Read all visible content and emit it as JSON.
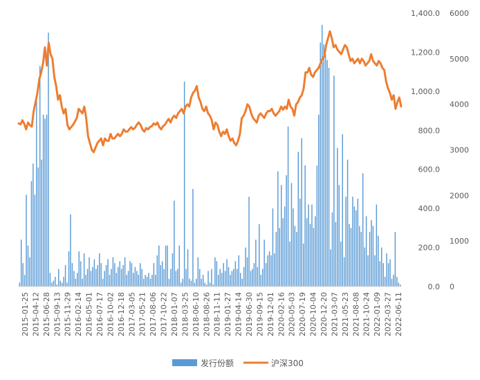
{
  "chart_data": {
    "type": "bar+line",
    "title": "",
    "colors": {
      "bars": "#5b9bd5",
      "line": "#ed7d31",
      "axis_text": "#595959",
      "axis_line": "#d9d9d9"
    },
    "y_left": {
      "min": 0,
      "max": 1400,
      "ticks": [
        0,
        200,
        400,
        600,
        800,
        1000,
        1200,
        1400
      ],
      "tick_labels": [
        "0.0",
        "200.0",
        "400.0",
        "600.0",
        "800.0",
        "1,000.0",
        "1,200.0",
        "1,400.0"
      ]
    },
    "y_right": {
      "min": 0,
      "max": 6000,
      "ticks": [
        0,
        1000,
        2000,
        3000,
        4000,
        5000,
        6000
      ],
      "tick_labels": [
        "0",
        "1000",
        "2000",
        "3000",
        "4000",
        "5000",
        "6000"
      ]
    },
    "x_tick_labels": [
      "2015-01-25",
      "2015-04-12",
      "2015-06-28",
      "2015-09-13",
      "2015-11-29",
      "2016-02-14",
      "2016-05-01",
      "2016-07-17",
      "2016-10-02",
      "2016-12-18",
      "2017-03-05",
      "2017-05-21",
      "2017-08-06",
      "2017-10-22",
      "2018-01-07",
      "2018-03-25",
      "2018-06-10",
      "2018-08-26",
      "2018-11-11",
      "2019-01-27",
      "2019-04-14",
      "2019-06-30",
      "2019-09-15",
      "2019-12-01",
      "2020-02-16",
      "2020-05-03",
      "2020-07-19",
      "2020-10-04",
      "2020-12-20",
      "2021-03-07",
      "2021-05-23",
      "2021-08-08",
      "2021-10-24",
      "2022-01-09",
      "2022-03-27",
      "2022-06-11"
    ],
    "series": [
      {
        "name": "发行份额",
        "type": "bar",
        "axis": "left",
        "values": [
          20,
          240,
          120,
          60,
          470,
          210,
          150,
          540,
          630,
          470,
          950,
          610,
          1130,
          650,
          880,
          860,
          880,
          1300,
          70,
          20,
          30,
          50,
          10,
          90,
          30,
          20,
          50,
          110,
          20,
          180,
          370,
          120,
          80,
          40,
          70,
          180,
          130,
          40,
          170,
          60,
          90,
          150,
          80,
          100,
          140,
          90,
          110,
          170,
          120,
          40,
          80,
          110,
          140,
          60,
          90,
          150,
          120,
          70,
          100,
          130,
          90,
          110,
          150,
          60,
          80,
          130,
          120,
          70,
          100,
          80,
          60,
          120,
          90,
          40,
          60,
          50,
          70,
          40,
          60,
          120,
          60,
          160,
          210,
          110,
          130,
          90,
          210,
          210,
          40,
          90,
          170,
          440,
          80,
          90,
          210,
          20,
          40,
          1050,
          90,
          190,
          40,
          30,
          500,
          20,
          40,
          150,
          90,
          40,
          60,
          20,
          10,
          80,
          20,
          90,
          10,
          150,
          130,
          60,
          90,
          70,
          120,
          80,
          140,
          100,
          60,
          80,
          90,
          130,
          90,
          160,
          70,
          40,
          100,
          200,
          150,
          460,
          80,
          90,
          120,
          240,
          100,
          320,
          60,
          90,
          240,
          120,
          160,
          180,
          160,
          400,
          170,
          280,
          590,
          300,
          520,
          350,
          410,
          570,
          820,
          230,
          530,
          400,
          310,
          280,
          690,
          450,
          760,
          220,
          620,
          350,
          420,
          320,
          420,
          300,
          360,
          620,
          880,
          1250,
          1340,
          1240,
          1190,
          1160,
          1120,
          190,
          380,
          1080,
          330,
          710,
          520,
          230,
          780,
          150,
          460,
          650,
          320,
          300,
          460,
          410,
          390,
          450,
          310,
          280,
          580,
          200,
          360,
          160,
          280,
          340,
          310,
          160,
          420,
          260,
          130,
          200,
          120,
          50,
          170,
          120,
          140,
          40,
          60,
          280,
          50,
          20,
          10
        ]
      },
      {
        "name": "沪深300",
        "type": "line",
        "axis": "right",
        "values": [
          3580,
          3560,
          3650,
          3570,
          3450,
          3600,
          3540,
          3510,
          3850,
          4050,
          4250,
          4550,
          4700,
          4900,
          5250,
          4850,
          5350,
          5100,
          5000,
          4600,
          4400,
          4100,
          4200,
          3950,
          3800,
          3900,
          3550,
          3450,
          3500,
          3550,
          3620,
          3700,
          3900,
          3850,
          3800,
          3950,
          3700,
          3300,
          3150,
          3000,
          2950,
          3050,
          3150,
          3200,
          3250,
          3100,
          3250,
          3200,
          3200,
          3350,
          3250,
          3250,
          3300,
          3350,
          3300,
          3350,
          3450,
          3400,
          3400,
          3450,
          3500,
          3450,
          3480,
          3550,
          3600,
          3550,
          3450,
          3400,
          3480,
          3450,
          3500,
          3520,
          3580,
          3550,
          3600,
          3500,
          3450,
          3520,
          3550,
          3620,
          3680,
          3600,
          3700,
          3750,
          3700,
          3800,
          3850,
          3900,
          3800,
          3950,
          4000,
          3950,
          4150,
          4250,
          4300,
          4400,
          4150,
          4050,
          3900,
          3850,
          3950,
          3800,
          3750,
          3650,
          3450,
          3600,
          3550,
          3400,
          3300,
          3400,
          3350,
          3450,
          3300,
          3200,
          3250,
          3150,
          3100,
          3200,
          3350,
          3700,
          3750,
          3850,
          4000,
          3950,
          3800,
          3700,
          3650,
          3600,
          3750,
          3800,
          3750,
          3700,
          3800,
          3850,
          3850,
          3900,
          3800,
          3750,
          3800,
          3850,
          3950,
          3880,
          3950,
          3900,
          4100,
          3950,
          3900,
          3750,
          4000,
          4050,
          4150,
          4200,
          4350,
          4700,
          4700,
          4800,
          4650,
          4600,
          4700,
          4750,
          4800,
          4900,
          5000,
          5050,
          5300,
          5450,
          5600,
          5450,
          5250,
          5300,
          5200,
          5150,
          5100,
          5200,
          5300,
          5250,
          5100,
          4950,
          5000,
          4900,
          4950,
          5000,
          4900,
          5000,
          4950,
          4850,
          4900,
          4950,
          5100,
          4950,
          4900,
          4850,
          4950,
          4900,
          4800,
          4750,
          4500,
          4350,
          4250,
          4100,
          4200,
          3900,
          4050,
          4150,
          3950
        ]
      }
    ],
    "legend": {
      "position": "bottom",
      "items": [
        "发行份额",
        "沪深300"
      ]
    }
  }
}
